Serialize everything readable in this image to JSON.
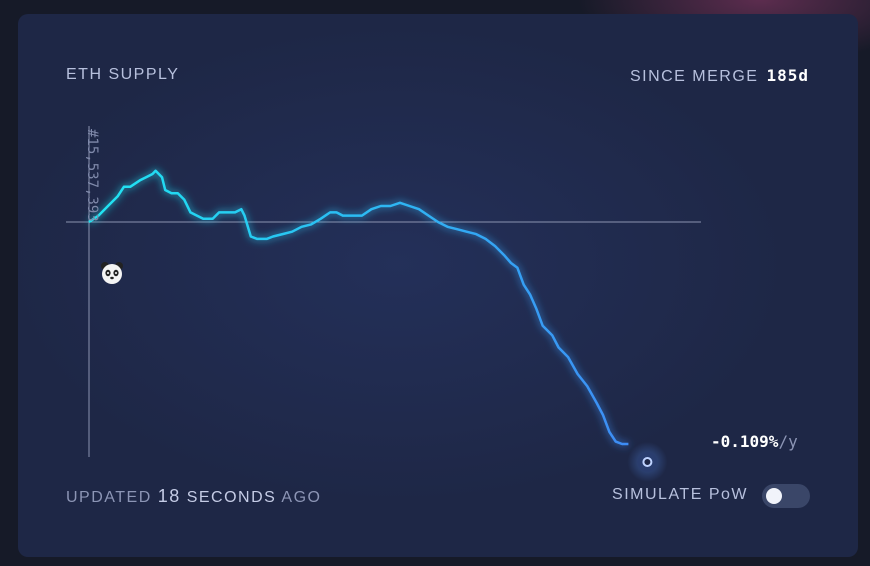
{
  "header": {
    "title": "ETH SUPPLY",
    "since_label": "SINCE MERGE",
    "since_value": "185d"
  },
  "footer": {
    "updated_prefix": "UPDATED",
    "updated_number": "18",
    "updated_unit": "SECONDS",
    "updated_suffix": "AGO",
    "simulate_label": "SIMULATE PoW",
    "simulate_pow_enabled": false
  },
  "rate": {
    "value": "-0.109%",
    "unit": "/y"
  },
  "merge_block_label": "#15,537,393",
  "colors": {
    "line_start": "#1fe5f2",
    "line_end": "#3d8cf5",
    "baseline": "#8b93b0",
    "card": "#1e2746"
  },
  "icons": {
    "merge_marker": "panda-icon"
  },
  "chart_data": {
    "type": "line",
    "title": "ETH SUPPLY",
    "baseline": 0,
    "y_range": [
      -1,
      0.35
    ],
    "x_range": [
      0,
      185
    ],
    "grid": false,
    "legend": "none",
    "series": [
      {
        "values": [
          [
            0,
            0
          ],
          [
            3,
            0.02
          ],
          [
            6,
            0.05
          ],
          [
            9,
            0.08
          ],
          [
            11,
            0.11
          ],
          [
            13,
            0.11
          ],
          [
            16,
            0.13
          ],
          [
            18,
            0.14
          ],
          [
            20,
            0.15
          ],
          [
            21,
            0.16
          ],
          [
            23,
            0.14
          ],
          [
            24,
            0.1
          ],
          [
            26,
            0.09
          ],
          [
            28,
            0.09
          ],
          [
            30,
            0.07
          ],
          [
            32,
            0.03
          ],
          [
            34,
            0.02
          ],
          [
            36,
            0.01
          ],
          [
            39,
            0.01
          ],
          [
            41,
            0.03
          ],
          [
            44,
            0.03
          ],
          [
            46,
            0.03
          ],
          [
            48,
            0.04
          ],
          [
            49,
            0.02
          ],
          [
            51,
            -0.06
          ],
          [
            53,
            -0.07
          ],
          [
            56,
            -0.07
          ],
          [
            58,
            -0.06
          ],
          [
            61,
            -0.05
          ],
          [
            64,
            -0.04
          ],
          [
            67,
            -0.02
          ],
          [
            70,
            -0.01
          ],
          [
            73,
            0.01
          ],
          [
            76,
            0.03
          ],
          [
            78,
            0.03
          ],
          [
            80,
            0.02
          ],
          [
            83,
            0.02
          ],
          [
            86,
            0.02
          ],
          [
            89,
            0.04
          ],
          [
            92,
            0.05
          ],
          [
            95,
            0.05
          ],
          [
            98,
            0.06
          ],
          [
            101,
            0.05
          ],
          [
            104,
            0.04
          ],
          [
            107,
            0.02
          ],
          [
            110,
            0
          ],
          [
            113,
            -0.02
          ],
          [
            116,
            -0.03
          ],
          [
            119,
            -0.04
          ],
          [
            122,
            -0.05
          ],
          [
            125,
            -0.07
          ],
          [
            128,
            -0.1
          ],
          [
            131,
            -0.14
          ],
          [
            133,
            -0.17
          ],
          [
            135,
            -0.19
          ],
          [
            137,
            -0.26
          ],
          [
            139,
            -0.3
          ],
          [
            141,
            -0.36
          ],
          [
            143,
            -0.43
          ],
          [
            146,
            -0.47
          ],
          [
            148,
            -0.52
          ],
          [
            151,
            -0.56
          ],
          [
            154,
            -0.63
          ],
          [
            157,
            -0.68
          ],
          [
            160,
            -0.75
          ],
          [
            162,
            -0.8
          ],
          [
            164,
            -0.87
          ],
          [
            166,
            -0.91
          ],
          [
            168,
            -0.92
          ],
          [
            170,
            -0.92
          ]
        ]
      }
    ],
    "end_label": "-0.109%/y",
    "marker_label": "#15,537,393"
  }
}
